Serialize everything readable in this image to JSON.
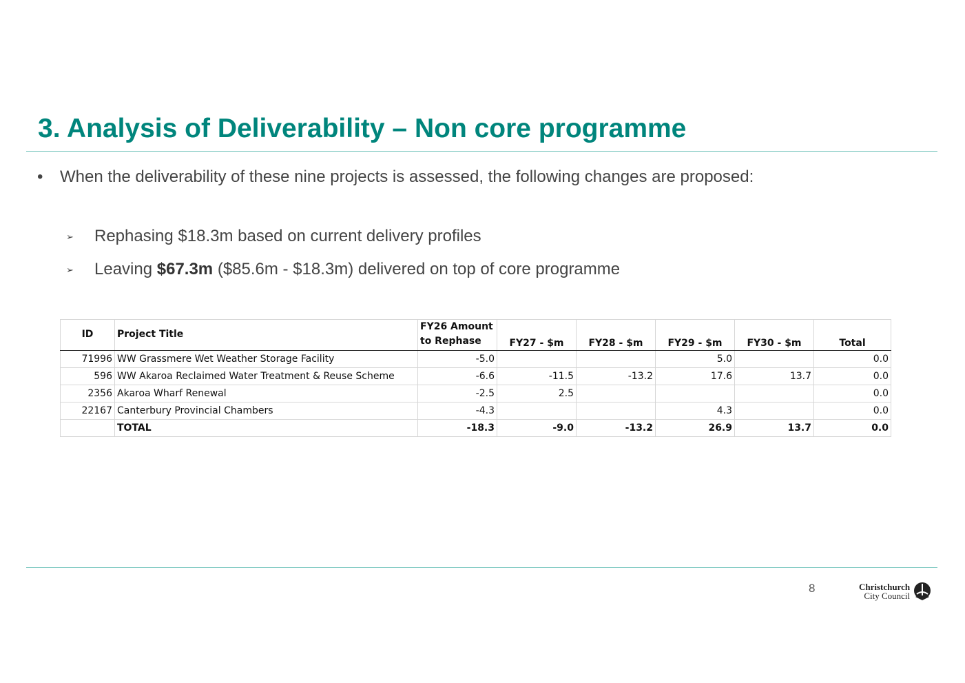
{
  "slide": {
    "title": "3. Analysis of Deliverability – Non core programme",
    "bullet": "When the deliverability of these nine projects is assessed, the following changes are proposed:",
    "bullet_marker": "•",
    "sub_marker": "➢",
    "sub1": "Rephasing $18.3m based on current delivery profiles",
    "sub2_prefix": "Leaving ",
    "sub2_bold": "$67.3m",
    "sub2_suffix": " ($85.6m - $18.3m) delivered on top of core programme",
    "page_number": "8"
  },
  "table": {
    "headers": {
      "id": "ID",
      "title": "Project Title",
      "fy26_line1": "FY26 Amount",
      "fy26_line2": "to Rephase",
      "fy27": "FY27 - $m",
      "fy28": "FY28 - $m",
      "fy29": "FY29 - $m",
      "fy30": "FY30 - $m",
      "total": "Total"
    },
    "rows": [
      {
        "id": "71996",
        "title": "WW Grassmere Wet Weather Storage Facility",
        "fy26": "-5.0",
        "fy27": "",
        "fy28": "",
        "fy29": "5.0",
        "fy30": "",
        "total": "0.0"
      },
      {
        "id": "596",
        "title": "WW Akaroa Reclaimed Water Treatment & Reuse Scheme",
        "fy26": "-6.6",
        "fy27": "-11.5",
        "fy28": "-13.2",
        "fy29": "17.6",
        "fy30": "13.7",
        "total": "0.0"
      },
      {
        "id": "2356",
        "title": "Akaroa Wharf Renewal",
        "fy26": "-2.5",
        "fy27": "2.5",
        "fy28": "",
        "fy29": "",
        "fy30": "",
        "total": "0.0"
      },
      {
        "id": "22167",
        "title": "Canterbury Provincial Chambers",
        "fy26": "-4.3",
        "fy27": "",
        "fy28": "",
        "fy29": "4.3",
        "fy30": "",
        "total": "0.0"
      }
    ],
    "total_row": {
      "id": "",
      "title": "TOTAL",
      "fy26": "-18.3",
      "fy27": "-9.0",
      "fy28": "-13.2",
      "fy29": "26.9",
      "fy30": "13.7",
      "total": "0.0"
    }
  },
  "logo": {
    "line1": "Christchurch",
    "line2": "City Council",
    "icon": "council-emblem-icon"
  },
  "colors": {
    "title": "#00857c",
    "rule": "#7fc9c2"
  }
}
